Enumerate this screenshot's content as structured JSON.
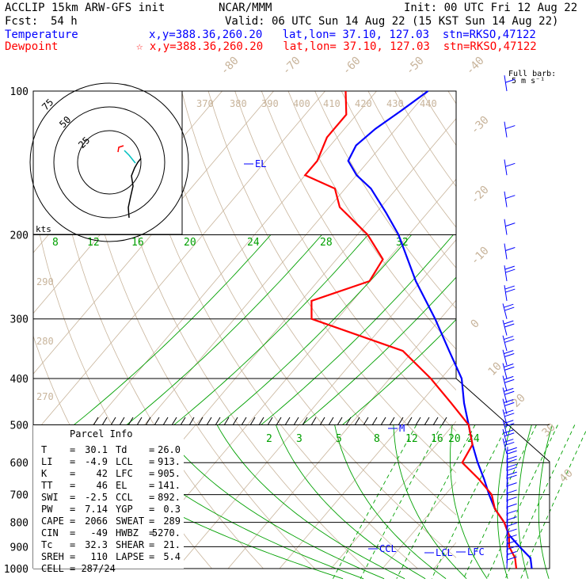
{
  "header": {
    "model": "ACCLIP 15km ARW-GFS init",
    "org": "NCAR/MMM",
    "init": "Init: 00 UTC Fri 12 Aug 22",
    "fcst_label": "Fcst:",
    "fcst_value": "54 h",
    "valid": "Valid: 06 UTC Sun 14 Aug 22 (15 KST Sun 14 Aug 22)",
    "temp_label": "Temperature",
    "temp_info": "x,y=388.36,260.20   lat,lon= 37.10, 127.03  stn=RKSO,47122",
    "dew_label": "Dewpoint",
    "dew_info": "☆ x,y=388.36,260.20   lat,lon= 37.10, 127.03  stn=RKSO,47122"
  },
  "colors": {
    "temperature": "#ff0000",
    "dewpoint": "#0000ff",
    "mixing_ratio": "#00a000",
    "dry_adiabat": "#c8b49b",
    "isotherm": "#c8b49b",
    "hodograph_red": "#ff0000",
    "hodograph_cyan": "#00c0c0"
  },
  "chart_data": {
    "type": "line",
    "title": "",
    "xlabel": "",
    "ylabel": "",
    "pressure_ticks": [
      "100",
      "200",
      "300",
      "400",
      "500",
      "600",
      "700",
      "800",
      "900",
      "1000"
    ],
    "isotherm_labels": [
      "-80",
      "-70",
      "-60",
      "-50",
      "-40",
      "-30",
      "-20",
      "-10",
      "0",
      "10",
      "20",
      "30",
      "40"
    ],
    "theta_labels": [
      "370",
      "380",
      "390",
      "400",
      "410",
      "420",
      "430",
      "440",
      "290",
      "280",
      "270"
    ],
    "mixing_ratio_upper_labels": [
      "8",
      "12",
      "16",
      "20",
      "24",
      "28",
      "32"
    ],
    "mixing_ratio_lower_labels": [
      "2",
      "3",
      "5",
      "8",
      "12",
      "16",
      "20",
      "24"
    ],
    "wind_barb_label": "Full barb:\n5 m s⁻¹",
    "hodograph_labels": [
      "75",
      "50",
      "25",
      "kts"
    ],
    "parcel_levels": [
      {
        "label": "EL",
        "pressure": 141
      },
      {
        "label": "CCL",
        "pressure": 892
      },
      {
        "label": "LCL",
        "pressure": 913
      },
      {
        "label": "LFC",
        "pressure": 905
      },
      {
        "label": "M",
        "pressure": 500
      }
    ],
    "series": [
      {
        "name": "Temperature",
        "points": [
          [
            1000,
            29
          ],
          [
            950,
            27
          ],
          [
            900,
            23
          ],
          [
            850,
            19
          ],
          [
            800,
            16
          ],
          [
            750,
            12
          ],
          [
            700,
            8.5
          ],
          [
            650,
            5
          ],
          [
            600,
            1
          ],
          [
            550,
            -3
          ],
          [
            500,
            -7
          ],
          [
            450,
            -11.5
          ],
          [
            400,
            -16
          ],
          [
            350,
            -23
          ],
          [
            300,
            -31
          ],
          [
            250,
            -41
          ],
          [
            200,
            -52
          ],
          [
            180,
            -58
          ],
          [
            160,
            -65
          ],
          [
            150,
            -70
          ],
          [
            140,
            -74
          ],
          [
            130,
            -75
          ],
          [
            120,
            -74
          ],
          [
            110,
            -72
          ],
          [
            100,
            -70
          ]
        ]
      },
      {
        "name": "Dewpoint",
        "points": [
          [
            1000,
            26
          ],
          [
            950,
            24
          ],
          [
            900,
            21
          ],
          [
            850,
            19
          ],
          [
            800,
            16
          ],
          [
            750,
            12
          ],
          [
            700,
            9
          ],
          [
            650,
            4
          ],
          [
            600,
            -2
          ],
          [
            550,
            -3
          ],
          [
            500,
            -7
          ],
          [
            450,
            -14
          ],
          [
            400,
            -22
          ],
          [
            350,
            -32
          ],
          [
            300,
            -55
          ],
          [
            275,
            -58
          ],
          [
            250,
            -50
          ],
          [
            225,
            -51
          ],
          [
            200,
            -58
          ],
          [
            175,
            -68
          ],
          [
            160,
            -72
          ],
          [
            150,
            -80
          ],
          [
            140,
            -80
          ],
          [
            125,
            -82
          ],
          [
            112,
            -82
          ],
          [
            100,
            -86
          ]
        ]
      }
    ]
  },
  "parcel_info": {
    "title": "Parcel Info",
    "rows": [
      [
        "T",
        "30.1",
        "Td",
        "26.0"
      ],
      [
        "LI",
        "-4.9",
        "LCL",
        "913."
      ],
      [
        "K",
        "42",
        "LFC",
        "905."
      ],
      [
        "TT",
        "46",
        "EL",
        "141."
      ],
      [
        "SWI",
        "-2.5",
        "CCL",
        "892."
      ],
      [
        "PW",
        "7.14",
        "YGP",
        "0.3"
      ],
      [
        "CAPE",
        "2066",
        "SWEAT",
        "289"
      ],
      [
        "CIN",
        "-49",
        "HWBZ",
        "5270."
      ],
      [
        "Tc",
        "32.3",
        "SHEAR",
        "21."
      ],
      [
        "SREH",
        "110",
        "LAPSE",
        "5.4"
      ],
      [
        "CELL",
        "287/24",
        "",
        ""
      ]
    ]
  }
}
